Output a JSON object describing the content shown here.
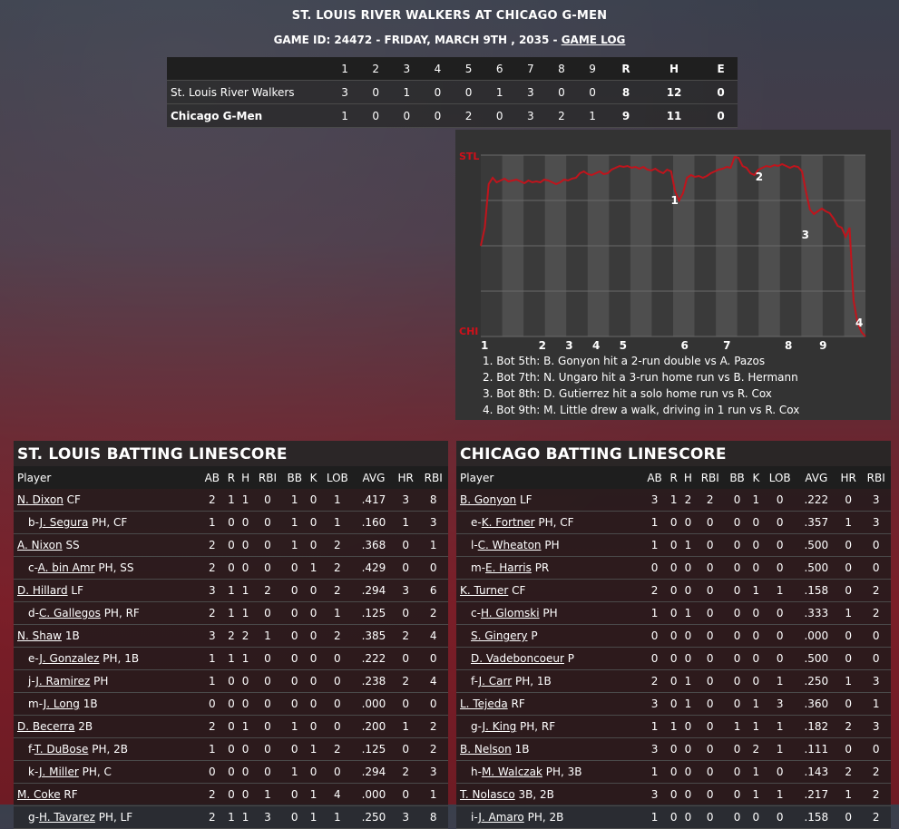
{
  "header": {
    "title": "ST. LOUIS RIVER WALKERS AT CHICAGO G-MEN",
    "subtitle": "GAME ID: 24472 - FRIDAY, MARCH 9TH , 2035 - ",
    "game_log_link": "GAME LOG"
  },
  "linescore": {
    "columns": [
      "1",
      "2",
      "3",
      "4",
      "5",
      "6",
      "7",
      "8",
      "9",
      "R",
      "H",
      "E"
    ],
    "rows": [
      {
        "team": "St. Louis River Walkers",
        "cells": [
          "3",
          "0",
          "1",
          "0",
          "0",
          "1",
          "3",
          "0",
          "0",
          "8",
          "12",
          "0"
        ]
      },
      {
        "team": "Chicago G-Men",
        "cells": [
          "1",
          "0",
          "0",
          "0",
          "2",
          "0",
          "3",
          "2",
          "1",
          "9",
          "11",
          "0"
        ]
      }
    ]
  },
  "chart_data": {
    "type": "line",
    "title": "",
    "y_top_label": "STL",
    "y_bottom_label": "CHI",
    "x_labels": [
      "1",
      "2",
      "3",
      "4",
      "5",
      "6",
      "7",
      "8",
      "9"
    ],
    "markers": [
      "1",
      "2",
      "3",
      "4"
    ],
    "series": [
      {
        "values": [
          0.0,
          0.2,
          0.68,
          0.75,
          0.7,
          0.72,
          0.74,
          0.71,
          0.72,
          0.73,
          0.71,
          0.69,
          0.72,
          0.7,
          0.71,
          0.7,
          0.73,
          0.72,
          0.7,
          0.68,
          0.7,
          0.73,
          0.72,
          0.74,
          0.75,
          0.8,
          0.82,
          0.79,
          0.78,
          0.8,
          0.82,
          0.79,
          0.8,
          0.84,
          0.86,
          0.88,
          0.87,
          0.88,
          0.86,
          0.87,
          0.85,
          0.87,
          0.84,
          0.83,
          0.85,
          0.82,
          0.8,
          0.84,
          0.82,
          0.6,
          0.5,
          0.58,
          0.75,
          0.78,
          0.76,
          0.77,
          0.75,
          0.77,
          0.8,
          0.82,
          0.84,
          0.85,
          0.87,
          0.86,
          0.98,
          0.97,
          0.88,
          0.86,
          0.8,
          0.78,
          0.84,
          0.86,
          0.88,
          0.87,
          0.89,
          0.88,
          0.9,
          0.88,
          0.86,
          0.88,
          0.87,
          0.82,
          0.6,
          0.4,
          0.35,
          0.38,
          0.41,
          0.38,
          0.36,
          0.3,
          0.22,
          0.2,
          0.1,
          0.2,
          -0.6,
          -0.85,
          -0.95,
          -1.0
        ]
      }
    ],
    "notes": [
      "1. Bot 5th: B. Gonyon hit a 2-run double vs A. Pazos",
      "2. Bot 7th: N. Ungaro hit a 3-run home run vs B. Hermann",
      "3. Bot 8th: D. Gutierrez hit a solo home run vs R. Cox",
      "4. Bot 9th: M. Little drew a walk, driving in 1 run vs R. Cox"
    ]
  },
  "batting": {
    "columns": [
      "Player",
      "AB",
      "R",
      "H",
      "RBI",
      "BB",
      "K",
      "LOB",
      "AVG",
      "HR",
      "RBI"
    ],
    "stl": {
      "title": "ST. LOUIS BATTING LINESCORE",
      "rows": [
        {
          "prefix": "",
          "name": "N. Dixon",
          "pos": " CF",
          "sub": false,
          "stats": [
            "2",
            "1",
            "1",
            "0",
            "1",
            "0",
            "1",
            ".417",
            "3",
            "8"
          ]
        },
        {
          "prefix": "b-",
          "name": "J. Segura",
          "pos": " PH, CF",
          "sub": true,
          "stats": [
            "1",
            "0",
            "0",
            "0",
            "1",
            "0",
            "1",
            ".160",
            "1",
            "3"
          ]
        },
        {
          "prefix": "",
          "name": "A. Nixon",
          "pos": " SS",
          "sub": false,
          "stats": [
            "2",
            "0",
            "0",
            "0",
            "1",
            "0",
            "2",
            ".368",
            "0",
            "1"
          ]
        },
        {
          "prefix": "c-",
          "name": "A. bin Amr",
          "pos": " PH, SS",
          "sub": true,
          "stats": [
            "2",
            "0",
            "0",
            "0",
            "0",
            "1",
            "2",
            ".429",
            "0",
            "0"
          ]
        },
        {
          "prefix": "",
          "name": "D. Hillard",
          "pos": " LF",
          "sub": false,
          "stats": [
            "3",
            "1",
            "1",
            "2",
            "0",
            "0",
            "2",
            ".294",
            "3",
            "6"
          ]
        },
        {
          "prefix": "d-",
          "name": "C. Gallegos",
          "pos": " PH, RF",
          "sub": true,
          "stats": [
            "2",
            "1",
            "1",
            "0",
            "0",
            "0",
            "1",
            ".125",
            "0",
            "2"
          ]
        },
        {
          "prefix": "",
          "name": "N. Shaw",
          "pos": " 1B",
          "sub": false,
          "stats": [
            "3",
            "2",
            "2",
            "1",
            "0",
            "0",
            "2",
            ".385",
            "2",
            "4"
          ]
        },
        {
          "prefix": "e-",
          "name": "J. Gonzalez",
          "pos": " PH, 1B",
          "sub": true,
          "stats": [
            "1",
            "1",
            "1",
            "0",
            "0",
            "0",
            "0",
            ".222",
            "0",
            "0"
          ]
        },
        {
          "prefix": "j-",
          "name": "J. Ramirez",
          "pos": " PH",
          "sub": true,
          "stats": [
            "1",
            "0",
            "0",
            "0",
            "0",
            "0",
            "0",
            ".238",
            "2",
            "4"
          ]
        },
        {
          "prefix": "m-",
          "name": "J. Long",
          "pos": " 1B",
          "sub": true,
          "stats": [
            "0",
            "0",
            "0",
            "0",
            "0",
            "0",
            "0",
            ".000",
            "0",
            "0"
          ]
        },
        {
          "prefix": "",
          "name": "D. Becerra",
          "pos": " 2B",
          "sub": false,
          "stats": [
            "2",
            "0",
            "1",
            "0",
            "1",
            "0",
            "0",
            ".200",
            "1",
            "2"
          ]
        },
        {
          "prefix": "f-",
          "name": "T. DuBose",
          "pos": " PH, 2B",
          "sub": true,
          "stats": [
            "1",
            "0",
            "0",
            "0",
            "0",
            "1",
            "2",
            ".125",
            "0",
            "2"
          ]
        },
        {
          "prefix": "k-",
          "name": "J. Miller",
          "pos": " PH, C",
          "sub": true,
          "stats": [
            "0",
            "0",
            "0",
            "0",
            "1",
            "0",
            "0",
            ".294",
            "2",
            "3"
          ]
        },
        {
          "prefix": "",
          "name": "M. Coke",
          "pos": " RF",
          "sub": false,
          "stats": [
            "2",
            "0",
            "0",
            "1",
            "0",
            "1",
            "4",
            ".000",
            "0",
            "1"
          ]
        },
        {
          "prefix": "g-",
          "name": "H. Tavarez",
          "pos": " PH, LF",
          "sub": true,
          "stats": [
            "2",
            "1",
            "1",
            "3",
            "0",
            "1",
            "1",
            ".250",
            "3",
            "8"
          ]
        }
      ]
    },
    "chi": {
      "title": "CHICAGO BATTING LINESCORE",
      "rows": [
        {
          "prefix": "",
          "name": "B. Gonyon",
          "pos": " LF",
          "sub": false,
          "stats": [
            "3",
            "1",
            "2",
            "2",
            "0",
            "1",
            "0",
            ".222",
            "0",
            "3"
          ]
        },
        {
          "prefix": "e-",
          "name": "K. Fortner",
          "pos": " PH, CF",
          "sub": true,
          "stats": [
            "1",
            "0",
            "0",
            "0",
            "0",
            "0",
            "0",
            ".357",
            "1",
            "3"
          ]
        },
        {
          "prefix": "l-",
          "name": "C. Wheaton",
          "pos": " PH",
          "sub": true,
          "stats": [
            "1",
            "0",
            "1",
            "0",
            "0",
            "0",
            "0",
            ".500",
            "0",
            "0"
          ]
        },
        {
          "prefix": "m-",
          "name": "E. Harris",
          "pos": " PR",
          "sub": true,
          "stats": [
            "0",
            "0",
            "0",
            "0",
            "0",
            "0",
            "0",
            ".500",
            "0",
            "0"
          ]
        },
        {
          "prefix": "",
          "name": "K. Turner",
          "pos": " CF",
          "sub": false,
          "stats": [
            "2",
            "0",
            "0",
            "0",
            "0",
            "1",
            "1",
            ".158",
            "0",
            "2"
          ]
        },
        {
          "prefix": "c-",
          "name": "H. Glomski",
          "pos": " PH",
          "sub": true,
          "stats": [
            "1",
            "0",
            "1",
            "0",
            "0",
            "0",
            "0",
            ".333",
            "1",
            "2"
          ]
        },
        {
          "prefix": "",
          "name": "S. Gingery",
          "pos": " P",
          "sub": true,
          "stats": [
            "0",
            "0",
            "0",
            "0",
            "0",
            "0",
            "0",
            ".000",
            "0",
            "0"
          ]
        },
        {
          "prefix": "",
          "name": "D. Vadeboncoeur",
          "pos": " P",
          "sub": true,
          "stats": [
            "0",
            "0",
            "0",
            "0",
            "0",
            "0",
            "0",
            ".500",
            "0",
            "0"
          ]
        },
        {
          "prefix": "f-",
          "name": "J. Carr",
          "pos": " PH, 1B",
          "sub": true,
          "stats": [
            "2",
            "0",
            "1",
            "0",
            "0",
            "0",
            "1",
            ".250",
            "1",
            "3"
          ]
        },
        {
          "prefix": "",
          "name": "L. Tejeda",
          "pos": " RF",
          "sub": false,
          "stats": [
            "3",
            "0",
            "1",
            "0",
            "0",
            "1",
            "3",
            ".360",
            "0",
            "1"
          ]
        },
        {
          "prefix": "g-",
          "name": "J. King",
          "pos": " PH, RF",
          "sub": true,
          "stats": [
            "1",
            "1",
            "0",
            "0",
            "1",
            "1",
            "1",
            ".182",
            "2",
            "3"
          ]
        },
        {
          "prefix": "",
          "name": "B. Nelson",
          "pos": " 1B",
          "sub": false,
          "stats": [
            "3",
            "0",
            "0",
            "0",
            "0",
            "2",
            "1",
            ".111",
            "0",
            "0"
          ]
        },
        {
          "prefix": "h-",
          "name": "M. Walczak",
          "pos": " PH, 3B",
          "sub": true,
          "stats": [
            "1",
            "0",
            "0",
            "0",
            "0",
            "1",
            "0",
            ".143",
            "2",
            "2"
          ]
        },
        {
          "prefix": "",
          "name": "T. Nolasco",
          "pos": " 3B, 2B",
          "sub": false,
          "stats": [
            "3",
            "0",
            "0",
            "0",
            "0",
            "1",
            "1",
            ".217",
            "1",
            "2"
          ]
        },
        {
          "prefix": "i-",
          "name": "J. Amaro",
          "pos": " PH, 2B",
          "sub": true,
          "stats": [
            "1",
            "0",
            "0",
            "0",
            "0",
            "0",
            "0",
            ".158",
            "0",
            "2"
          ]
        }
      ]
    }
  },
  "colors": {
    "line": "#c0141c",
    "band_light": "#4e4e4e",
    "band_dark": "#3a3a3a",
    "label_red": "#d0101a"
  }
}
